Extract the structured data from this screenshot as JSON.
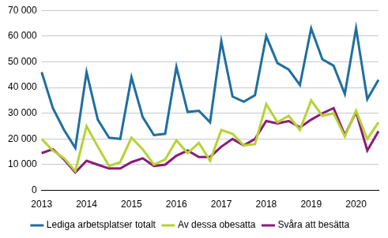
{
  "chart_data": {
    "type": "line",
    "categories": [
      "2013",
      null,
      null,
      null,
      "2014",
      null,
      null,
      null,
      "2015",
      null,
      null,
      null,
      "2016",
      null,
      null,
      null,
      "2017",
      null,
      null,
      null,
      "2018",
      null,
      null,
      null,
      "2019",
      null,
      null,
      null,
      "2020",
      null,
      null
    ],
    "series": [
      {
        "name": "Lediga arbetsplatser totalt",
        "color": "#1f6f9f",
        "values": [
          46000,
          32000,
          23500,
          16500,
          46000,
          27500,
          20500,
          20000,
          44000,
          28500,
          21500,
          22000,
          48000,
          30500,
          31000,
          26500,
          58000,
          36500,
          34500,
          37000,
          60000,
          49500,
          47000,
          41000,
          63000,
          51000,
          48500,
          37500,
          63000,
          35500,
          43000
        ]
      },
      {
        "name": "Av dessa obesatta",
        "color": "#b5d334",
        "values": [
          20000,
          15500,
          12500,
          7500,
          25000,
          17000,
          9500,
          11000,
          20500,
          16000,
          10000,
          12000,
          19500,
          14500,
          18500,
          11500,
          23500,
          22000,
          17500,
          18000,
          33500,
          26500,
          29000,
          23500,
          35000,
          29000,
          30000,
          21000,
          31000,
          20000,
          26500
        ]
      },
      {
        "name": "Svåra att besätta",
        "color": "#8a1c78",
        "values": [
          14500,
          16000,
          12000,
          7000,
          11500,
          10000,
          8500,
          8500,
          11000,
          12500,
          9500,
          10000,
          13500,
          15500,
          13000,
          13000,
          17000,
          20000,
          17500,
          20000,
          27000,
          26000,
          27000,
          24500,
          27500,
          30000,
          32000,
          21500,
          30500,
          15500,
          23000
        ]
      }
    ],
    "ylim": [
      0,
      70000
    ],
    "yticks": [
      0,
      {
        "value": 10000,
        "label": "10 000"
      },
      {
        "value": 20000,
        "label": "20 000"
      },
      {
        "value": 30000,
        "label": "30 000"
      },
      {
        "value": 40000,
        "label": "40 000"
      },
      {
        "value": 50000,
        "label": "50 000"
      },
      {
        "value": 60000,
        "label": "60 000"
      },
      {
        "value": 70000,
        "label": "70 000"
      }
    ],
    "grid": true,
    "legend": "bottom"
  }
}
